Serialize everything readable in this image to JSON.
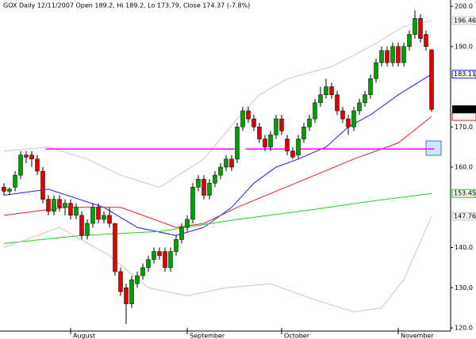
{
  "chart_data": {
    "type": "candlestick",
    "title": "GOX  Daily  12/11/2007  Open 189.2,  Hi 189.2,  Lo 173.79,  Close 174.37  (-7.8%)",
    "categories": [
      null,
      null,
      null,
      null,
      null,
      null,
      null,
      null,
      null,
      null,
      null,
      null,
      "August",
      null,
      null,
      null,
      null,
      null,
      null,
      null,
      null,
      null,
      null,
      null,
      null,
      null,
      null,
      null,
      null,
      null,
      null,
      null,
      null,
      "September",
      null,
      null,
      null,
      null,
      null,
      null,
      null,
      null,
      null,
      null,
      null,
      null,
      null,
      null,
      null,
      null,
      "October",
      null,
      null,
      null,
      null,
      null,
      null,
      null,
      null,
      null,
      null,
      null,
      null,
      null,
      null,
      null,
      null,
      null,
      null,
      null,
      null,
      "November",
      null,
      null,
      null,
      null,
      null,
      null
    ],
    "open": [
      155,
      154,
      155,
      158,
      163,
      163,
      162,
      159,
      152,
      149,
      152,
      150,
      151,
      148,
      148,
      143,
      146,
      150,
      147,
      148,
      146,
      134,
      130,
      126,
      131,
      133,
      135,
      137,
      139,
      139,
      135,
      139,
      142,
      145,
      147,
      155,
      157,
      153,
      156,
      158,
      160,
      162,
      162,
      170,
      174,
      172,
      170,
      167,
      165,
      168,
      172,
      167,
      164,
      163,
      167,
      170,
      172,
      176,
      178,
      180,
      178,
      174,
      172,
      170,
      174,
      176,
      178,
      182,
      186,
      189,
      186,
      190,
      186,
      190,
      193,
      197,
      193,
      189.2
    ],
    "high": [
      156,
      155,
      159,
      164,
      164,
      164,
      163,
      160,
      153,
      153,
      153,
      152,
      152,
      151,
      149,
      147,
      151,
      151,
      149,
      150,
      146,
      135,
      131,
      133,
      134,
      136,
      138,
      140,
      140,
      140,
      140,
      143,
      146,
      148,
      156,
      158,
      158,
      157,
      159,
      161,
      163,
      163,
      171,
      175,
      175,
      173,
      171,
      168,
      169,
      173,
      173,
      168,
      165,
      168,
      171,
      173,
      177,
      180,
      182,
      181,
      179,
      175,
      173,
      175,
      177,
      179,
      183,
      187,
      190,
      190,
      191,
      191,
      191,
      194,
      199,
      198,
      194,
      189.2
    ],
    "low": [
      153,
      153,
      154,
      157,
      161,
      160,
      158,
      151,
      148,
      148,
      149,
      148,
      147,
      147,
      142,
      142,
      145,
      146,
      146,
      145,
      133,
      128,
      121,
      125,
      130,
      132,
      134,
      136,
      137,
      134,
      134,
      138,
      141,
      144,
      146,
      154,
      152,
      152,
      155,
      157,
      159,
      159,
      161,
      169,
      171,
      169,
      166,
      164,
      164,
      167,
      168,
      163,
      162,
      162,
      166,
      169,
      171,
      175,
      177,
      177,
      173,
      171,
      168,
      169,
      173,
      175,
      177,
      181,
      185,
      185,
      185,
      185,
      185,
      189,
      192,
      191,
      189,
      173.79
    ],
    "close": [
      154,
      154.5,
      158,
      163,
      162.5,
      162,
      159,
      152,
      149,
      152,
      150,
      151,
      148,
      150,
      143,
      146,
      150,
      147,
      148,
      146,
      134,
      129,
      126,
      132,
      133,
      135,
      137,
      139,
      138,
      135,
      139,
      142,
      145,
      147,
      155,
      157,
      153,
      156,
      158,
      160,
      162,
      160,
      170,
      174,
      172,
      170,
      167,
      165,
      168,
      172,
      169,
      164,
      162.5,
      167,
      170,
      172,
      176,
      178,
      180,
      178,
      174,
      172,
      170,
      174,
      176,
      178,
      182,
      186,
      189,
      186,
      190,
      186,
      190,
      193,
      197,
      192,
      190,
      174.37
    ],
    "up_color": "#00a000",
    "down_color": "#e00000",
    "close_label": "174.37",
    "overlays": [
      {
        "color": "#c8c8c8",
        "x": [
          0,
          8,
          15,
          21,
          28,
          36,
          42,
          46,
          51,
          59,
          66,
          72,
          77
        ],
        "values": [
          164,
          165,
          162,
          158,
          155,
          162,
          172,
          178,
          182,
          185,
          190,
          195,
          196.46
        ],
        "value_label": "196.46"
      },
      {
        "color": "#2020e0",
        "x": [
          0,
          8,
          18,
          24,
          31,
          36,
          41,
          45,
          49,
          53,
          58,
          62,
          66,
          71,
          77
        ],
        "values": [
          153,
          154.5,
          150,
          145,
          143,
          145,
          150,
          156,
          160,
          162,
          165,
          170,
          173,
          178,
          183.118
        ],
        "value_label": "183.118"
      },
      {
        "color": "#e02020",
        "x": [
          0,
          11,
          21,
          31,
          36,
          42,
          49,
          56,
          63,
          71,
          77
        ],
        "values": [
          148,
          150,
          150,
          145,
          146,
          150,
          154,
          158,
          162,
          166,
          172.6
        ]
      },
      {
        "color": "#20d020",
        "x": [
          0,
          14,
          28,
          35,
          42,
          56,
          66,
          77
        ],
        "values": [
          141,
          143,
          144,
          145.5,
          147,
          149.5,
          151.5,
          153.451
        ],
        "value_label": "153.451"
      },
      {
        "color": "#c8c8c8",
        "x": [
          0,
          10,
          19,
          26,
          33,
          40,
          48,
          56,
          63,
          68,
          72,
          77
        ],
        "values": [
          140,
          145,
          138,
          130,
          128,
          130,
          131,
          127,
          124,
          125,
          132,
          147.762
        ],
        "value_label": "147.762"
      }
    ],
    "support_lines": [
      {
        "x": [
          7.5,
          41.5
        ],
        "value": 164.5
      },
      {
        "x": [
          43.5,
          51
        ],
        "value": 164.5
      },
      {
        "x": [
          53,
          77.5
        ],
        "value": 164.5
      }
    ],
    "support_color": "#ff00ff",
    "ylim": [
      120,
      200
    ],
    "yticks": [
      {
        "value": 120,
        "label": "120.0"
      },
      {
        "value": 130,
        "label": "130.0"
      },
      {
        "value": 140,
        "label": "140.0"
      },
      {
        "value": 160,
        "label": "160.0"
      },
      {
        "value": 170,
        "label": "170.0"
      },
      {
        "value": 190,
        "label": "190.0"
      },
      {
        "value": 200,
        "label": "200.0"
      }
    ]
  }
}
